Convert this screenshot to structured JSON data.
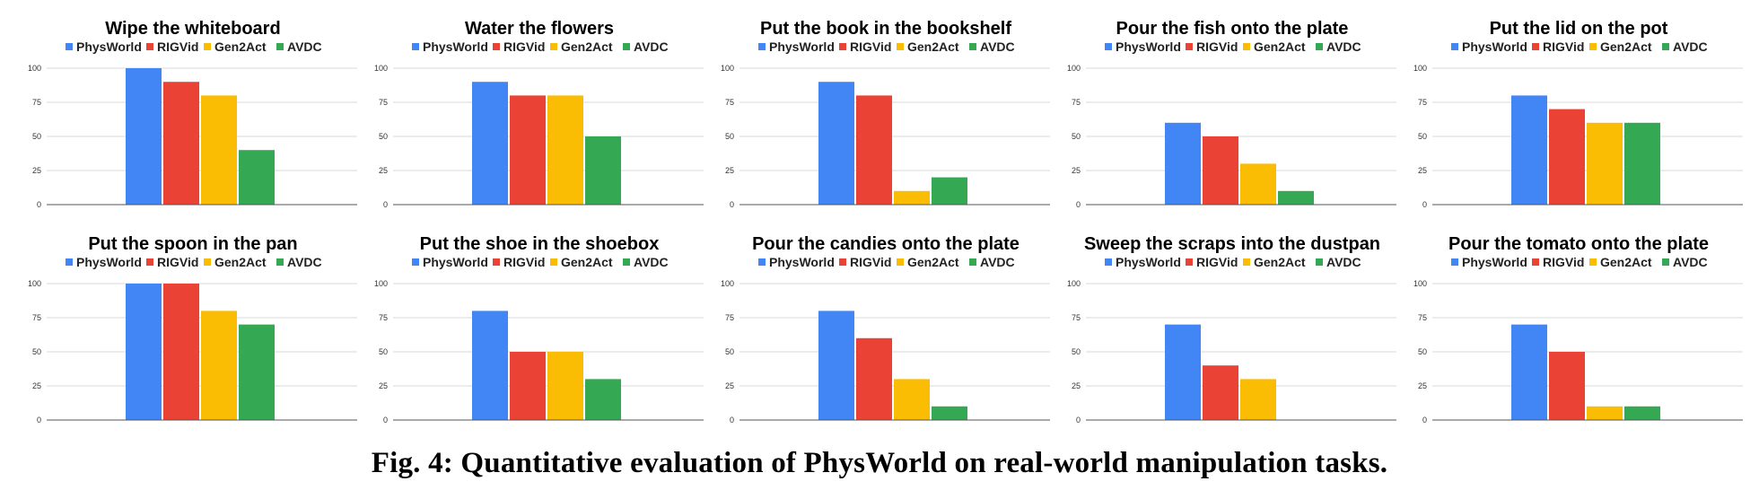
{
  "caption": "Fig. 4: Quantitative evaluation of PhysWorld on real-world manipulation tasks.",
  "colors": {
    "PhysWorld": "#4285f4",
    "RIGVid": "#ea4335",
    "Gen2Act": "#fbbc04",
    "AVDC": "#34a853",
    "grid": "#d9d9d9",
    "axis": "#555555"
  },
  "chart_data": [
    {
      "type": "bar",
      "title": "Wipe the whiteboard",
      "categories": [
        ""
      ],
      "ylim": [
        0,
        100
      ],
      "yticks": [
        "0",
        "25",
        "50",
        "75",
        "100"
      ],
      "grid": true,
      "legend": "top-center",
      "series": [
        {
          "name": "PhysWorld",
          "values": [
            100
          ]
        },
        {
          "name": "RIGVid",
          "values": [
            90
          ]
        },
        {
          "name": "Gen2Act",
          "values": [
            80
          ]
        },
        {
          "name": "AVDC",
          "values": [
            40
          ]
        }
      ]
    },
    {
      "type": "bar",
      "title": "Water the flowers",
      "categories": [
        ""
      ],
      "ylim": [
        0,
        100
      ],
      "yticks": [
        "0",
        "25",
        "50",
        "75",
        "100"
      ],
      "grid": true,
      "legend": "top-center",
      "series": [
        {
          "name": "PhysWorld",
          "values": [
            90
          ]
        },
        {
          "name": "RIGVid",
          "values": [
            80
          ]
        },
        {
          "name": "Gen2Act",
          "values": [
            80
          ]
        },
        {
          "name": "AVDC",
          "values": [
            50
          ]
        }
      ]
    },
    {
      "type": "bar",
      "title": "Put the book in the bookshelf",
      "categories": [
        ""
      ],
      "ylim": [
        0,
        100
      ],
      "yticks": [
        "0",
        "25",
        "50",
        "75",
        "100"
      ],
      "grid": true,
      "legend": "top-center",
      "series": [
        {
          "name": "PhysWorld",
          "values": [
            90
          ]
        },
        {
          "name": "RIGVid",
          "values": [
            80
          ]
        },
        {
          "name": "Gen2Act",
          "values": [
            10
          ]
        },
        {
          "name": "AVDC",
          "values": [
            20
          ]
        }
      ]
    },
    {
      "type": "bar",
      "title": "Pour the fish onto the plate",
      "categories": [
        ""
      ],
      "ylim": [
        0,
        100
      ],
      "yticks": [
        "0",
        "25",
        "50",
        "75",
        "100"
      ],
      "grid": true,
      "legend": "top-center",
      "series": [
        {
          "name": "PhysWorld",
          "values": [
            60
          ]
        },
        {
          "name": "RIGVid",
          "values": [
            50
          ]
        },
        {
          "name": "Gen2Act",
          "values": [
            30
          ]
        },
        {
          "name": "AVDC",
          "values": [
            10
          ]
        }
      ]
    },
    {
      "type": "bar",
      "title": "Put the lid on the pot",
      "categories": [
        ""
      ],
      "ylim": [
        0,
        100
      ],
      "yticks": [
        "0",
        "25",
        "50",
        "75",
        "100"
      ],
      "grid": true,
      "legend": "top-center",
      "series": [
        {
          "name": "PhysWorld",
          "values": [
            80
          ]
        },
        {
          "name": "RIGVid",
          "values": [
            70
          ]
        },
        {
          "name": "Gen2Act",
          "values": [
            60
          ]
        },
        {
          "name": "AVDC",
          "values": [
            60
          ]
        }
      ]
    },
    {
      "type": "bar",
      "title": "Put the spoon in the pan",
      "categories": [
        ""
      ],
      "ylim": [
        0,
        100
      ],
      "yticks": [
        "0",
        "25",
        "50",
        "75",
        "100"
      ],
      "grid": true,
      "legend": "top-center",
      "series": [
        {
          "name": "PhysWorld",
          "values": [
            100
          ]
        },
        {
          "name": "RIGVid",
          "values": [
            100
          ]
        },
        {
          "name": "Gen2Act",
          "values": [
            80
          ]
        },
        {
          "name": "AVDC",
          "values": [
            70
          ]
        }
      ]
    },
    {
      "type": "bar",
      "title": "Put the shoe in the shoebox",
      "categories": [
        ""
      ],
      "ylim": [
        0,
        100
      ],
      "yticks": [
        "0",
        "25",
        "50",
        "75",
        "100"
      ],
      "grid": true,
      "legend": "top-center",
      "series": [
        {
          "name": "PhysWorld",
          "values": [
            80
          ]
        },
        {
          "name": "RIGVid",
          "values": [
            50
          ]
        },
        {
          "name": "Gen2Act",
          "values": [
            50
          ]
        },
        {
          "name": "AVDC",
          "values": [
            30
          ]
        }
      ]
    },
    {
      "type": "bar",
      "title": "Pour the candies onto the plate",
      "categories": [
        ""
      ],
      "ylim": [
        0,
        100
      ],
      "yticks": [
        "0",
        "25",
        "50",
        "75",
        "100"
      ],
      "grid": true,
      "legend": "top-center",
      "series": [
        {
          "name": "PhysWorld",
          "values": [
            80
          ]
        },
        {
          "name": "RIGVid",
          "values": [
            60
          ]
        },
        {
          "name": "Gen2Act",
          "values": [
            30
          ]
        },
        {
          "name": "AVDC",
          "values": [
            10
          ]
        }
      ]
    },
    {
      "type": "bar",
      "title": "Sweep the scraps into the dustpan",
      "categories": [
        ""
      ],
      "ylim": [
        0,
        100
      ],
      "yticks": [
        "0",
        "25",
        "50",
        "75",
        "100"
      ],
      "grid": true,
      "legend": "top-center",
      "series": [
        {
          "name": "PhysWorld",
          "values": [
            70
          ]
        },
        {
          "name": "RIGVid",
          "values": [
            40
          ]
        },
        {
          "name": "Gen2Act",
          "values": [
            30
          ]
        },
        {
          "name": "AVDC",
          "values": [
            0
          ]
        }
      ]
    },
    {
      "type": "bar",
      "title": "Pour the tomato onto the plate",
      "categories": [
        ""
      ],
      "ylim": [
        0,
        100
      ],
      "yticks": [
        "0",
        "25",
        "50",
        "75",
        "100"
      ],
      "grid": true,
      "legend": "top-center",
      "series": [
        {
          "name": "PhysWorld",
          "values": [
            70
          ]
        },
        {
          "name": "RIGVid",
          "values": [
            50
          ]
        },
        {
          "name": "Gen2Act",
          "values": [
            10
          ]
        },
        {
          "name": "AVDC",
          "values": [
            10
          ]
        }
      ]
    }
  ]
}
